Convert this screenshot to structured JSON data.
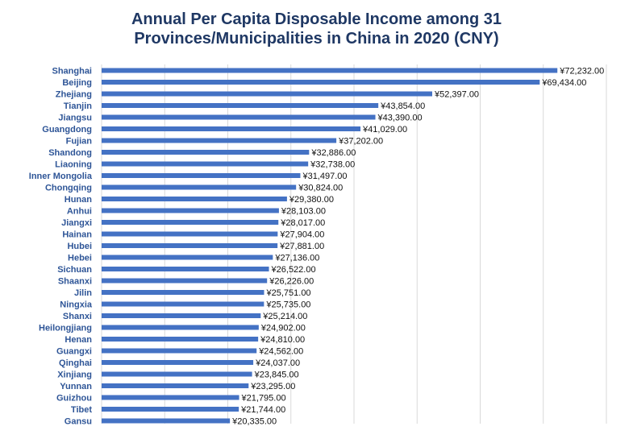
{
  "chart_data": {
    "type": "bar",
    "orientation": "horizontal",
    "title_lines": [
      "Annual Per Capita Disposable Income among 31",
      "Provinces/Municipalities in China in 2020 (CNY)"
    ],
    "categories": [
      "Shanghai",
      "Beijing",
      "Zhejiang",
      "Tianjin",
      "Jiangsu",
      "Guangdong",
      "Fujian",
      "Shandong",
      "Liaoning",
      "Inner Mongolia",
      "Chongqing",
      "Hunan",
      "Anhui",
      "Jiangxi",
      "Hainan",
      "Hubei",
      "Hebei",
      "Sichuan",
      "Shaanxi",
      "Jilin",
      "Ningxia",
      "Shanxi",
      "Heilongjiang",
      "Henan",
      "Guangxi",
      "Qinghai",
      "Xinjiang",
      "Yunnan",
      "Guizhou",
      "Tibet",
      "Gansu"
    ],
    "values": [
      72232,
      69434,
      52397,
      43854,
      43390,
      41029,
      37202,
      32886,
      32738,
      31497,
      30824,
      29380,
      28103,
      28017,
      27904,
      27881,
      27136,
      26522,
      26226,
      25751,
      25735,
      25214,
      24902,
      24810,
      24562,
      24037,
      23845,
      23295,
      21795,
      21744,
      20335
    ],
    "value_labels": [
      "¥72,232.00",
      "¥69,434.00",
      "¥52,397.00",
      "¥43,854.00",
      "¥43,390.00",
      "¥41,029.00",
      "¥37,202.00",
      "¥32,886.00",
      "¥32,738.00",
      "¥31,497.00",
      "¥30,824.00",
      "¥29,380.00",
      "¥28,103.00",
      "¥28,017.00",
      "¥27,904.00",
      "¥27,881.00",
      "¥27,136.00",
      "¥26,522.00",
      "¥26,226.00",
      "¥25,751.00",
      "¥25,735.00",
      "¥25,214.00",
      "¥24,902.00",
      "¥24,810.00",
      "¥24,562.00",
      "¥24,037.00",
      "¥23,845.00",
      "¥23,295.00",
      "¥21,795.00",
      "¥21,744.00",
      "¥20,335.00"
    ],
    "xlim": [
      0,
      80000
    ],
    "grid_step": 10000,
    "grid": true,
    "legend": false,
    "xlabel": "",
    "ylabel": "",
    "colors": {
      "bar": "#4472c4",
      "title": "#1f3864",
      "category_label": "#2e5597"
    }
  }
}
